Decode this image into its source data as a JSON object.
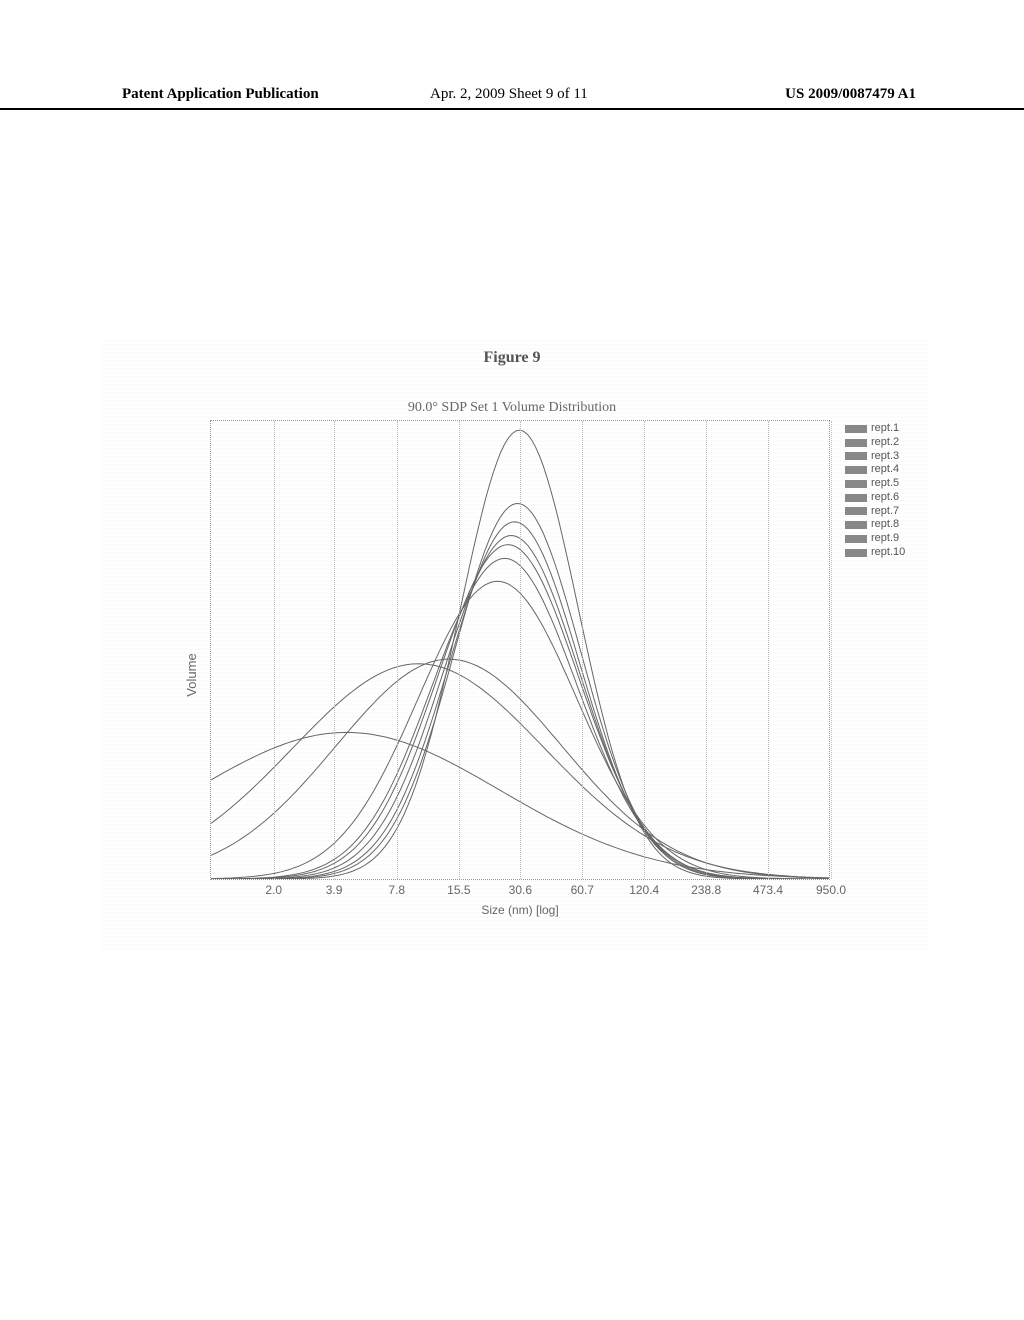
{
  "header": {
    "left": "Patent Application Publication",
    "center": "Apr. 2, 2009  Sheet 9 of 11",
    "right": "US 2009/0087479 A1"
  },
  "figure_caption": "Figure 9",
  "chart": {
    "type": "line",
    "title": "90.0° SDP Set 1 Volume Distribution",
    "ylabel": "Volume",
    "xlabel": "Size (nm)   [log]",
    "background_color": "#ffffff",
    "grid_color": "#bbbbbb",
    "border_style": "dotted",
    "border_color": "#999999",
    "text_color": "#666666",
    "line_color": "#666666",
    "line_width": 1,
    "x_scale": "log",
    "xlim": [
      1.0,
      950.0
    ],
    "ylim": [
      0,
      100
    ],
    "xtick_labels": [
      "2.0",
      "3.9",
      "7.8",
      "15.5",
      "30.6",
      "60.7",
      "120.4",
      "238.8",
      "473.4",
      "950.0"
    ],
    "xtick_values": [
      2.0,
      3.9,
      7.8,
      15.5,
      30.6,
      60.7,
      120.4,
      238.8,
      473.4,
      950.0
    ],
    "legend_position": "top-right-outside",
    "legend_swatch_color": "#888888",
    "legend_fontsize": 11,
    "title_fontsize": 14,
    "label_fontsize": 12,
    "tick_fontsize": 12,
    "series": [
      {
        "name": "rept.1",
        "peak_x": 30.6,
        "peak_y": 98,
        "sigma": 0.65
      },
      {
        "name": "rept.2",
        "peak_x": 30.0,
        "peak_y": 82,
        "sigma": 0.7
      },
      {
        "name": "rept.3",
        "peak_x": 29.0,
        "peak_y": 78,
        "sigma": 0.72
      },
      {
        "name": "rept.4",
        "peak_x": 28.0,
        "peak_y": 75,
        "sigma": 0.75
      },
      {
        "name": "rept.5",
        "peak_x": 27.0,
        "peak_y": 73,
        "sigma": 0.78
      },
      {
        "name": "rept.6",
        "peak_x": 26.0,
        "peak_y": 70,
        "sigma": 0.8
      },
      {
        "name": "rept.7",
        "peak_x": 24.0,
        "peak_y": 65,
        "sigma": 0.88
      },
      {
        "name": "rept.8",
        "peak_x": 14.0,
        "peak_y": 48,
        "sigma": 1.25
      },
      {
        "name": "rept.9",
        "peak_x": 10.0,
        "peak_y": 47,
        "sigma": 1.4
      },
      {
        "name": "rept.10",
        "peak_x": 4.5,
        "peak_y": 32,
        "sigma": 1.7
      }
    ]
  }
}
